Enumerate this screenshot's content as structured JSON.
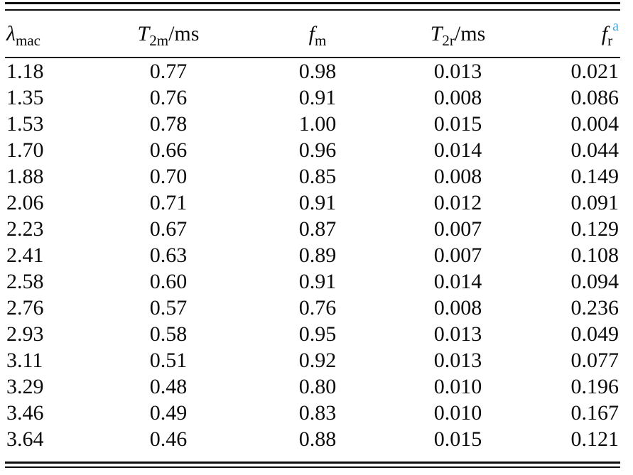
{
  "page": {
    "background": "#ffffff"
  },
  "colors": {
    "text": "#0b0b0b",
    "rule": "#0b0b0b",
    "footnote_marker": "#46a5df"
  },
  "table": {
    "columns": [
      {
        "symbol": "λ",
        "sub": "mac",
        "suffix": "",
        "sup": ""
      },
      {
        "symbol": "T",
        "sub": "2m",
        "suffix": "/ms",
        "sup": ""
      },
      {
        "symbol": "f",
        "sub": "m",
        "suffix": "",
        "sup": ""
      },
      {
        "symbol": "T",
        "sub": "2r",
        "suffix": "/ms",
        "sup": ""
      },
      {
        "symbol": "f",
        "sub": "r",
        "suffix": "",
        "sup": "a"
      }
    ],
    "rows": [
      [
        "1.18",
        "0.77",
        "0.98",
        "0.013",
        "0.021"
      ],
      [
        "1.35",
        "0.76",
        "0.91",
        "0.008",
        "0.086"
      ],
      [
        "1.53",
        "0.78",
        "1.00",
        "0.015",
        "0.004"
      ],
      [
        "1.70",
        "0.66",
        "0.96",
        "0.014",
        "0.044"
      ],
      [
        "1.88",
        "0.70",
        "0.85",
        "0.008",
        "0.149"
      ],
      [
        "2.06",
        "0.71",
        "0.91",
        "0.012",
        "0.091"
      ],
      [
        "2.23",
        "0.67",
        "0.87",
        "0.007",
        "0.129"
      ],
      [
        "2.41",
        "0.63",
        "0.89",
        "0.007",
        "0.108"
      ],
      [
        "2.58",
        "0.60",
        "0.91",
        "0.014",
        "0.094"
      ],
      [
        "2.76",
        "0.57",
        "0.76",
        "0.008",
        "0.236"
      ],
      [
        "2.93",
        "0.58",
        "0.95",
        "0.013",
        "0.049"
      ],
      [
        "3.11",
        "0.51",
        "0.92",
        "0.013",
        "0.077"
      ],
      [
        "3.29",
        "0.48",
        "0.80",
        "0.010",
        "0.196"
      ],
      [
        "3.46",
        "0.49",
        "0.83",
        "0.010",
        "0.167"
      ],
      [
        "3.64",
        "0.46",
        "0.88",
        "0.015",
        "0.121"
      ]
    ]
  }
}
